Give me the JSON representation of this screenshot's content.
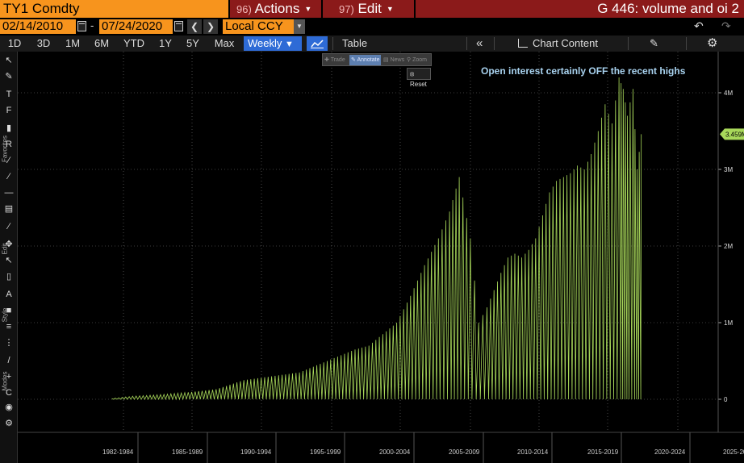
{
  "header": {
    "ticker": "TY1 Comdty",
    "actions_num": "96)",
    "actions_label": "Actions",
    "edit_num": "97)",
    "edit_label": "Edit",
    "title": "G 446: volume and oi 2"
  },
  "date_bar": {
    "start_date": "02/14/2010",
    "end_date": "07/24/2020",
    "separator": "-",
    "currency": "Local CCY"
  },
  "toolbar": {
    "periods": [
      "1D",
      "3D",
      "1M",
      "6M",
      "YTD",
      "1Y",
      "5Y",
      "Max"
    ],
    "frequency": "Weekly",
    "table_label": "Table",
    "chart_content_label": "Chart Content"
  },
  "left_toolbar": {
    "section_labels": [
      "Favorites",
      "Edit",
      "Style",
      "Modes"
    ]
  },
  "mini_toolbar": {
    "items": [
      "Trade",
      "Annotate",
      "News",
      "Zoom"
    ],
    "reset_label": "Reset"
  },
  "annotation_text": "Open interest certainly OFF the recent highs",
  "colors": {
    "orange": "#f7941d",
    "menu_red": "#8b1a1a",
    "series_green": "#a8d85a",
    "annotation_blue": "#a9d3f0"
  },
  "chart_data": {
    "type": "area",
    "x_labels": [
      "1982-1984",
      "1985-1989",
      "1990-1994",
      "1995-1999",
      "2000-2004",
      "2005-2009",
      "2010-2014",
      "2015-2019",
      "2020-2024",
      "2025-2029"
    ],
    "y_ticks": [
      "0",
      "1M",
      "2M",
      "3M",
      "4M"
    ],
    "ylim": [
      0,
      4300000
    ],
    "last_value_label": "3.459M",
    "grid": true,
    "series": [
      {
        "years": [
          1982.5,
          1984,
          1986,
          1988,
          1990,
          1992,
          1994,
          1996,
          1998,
          2000,
          2001,
          2002,
          2003,
          2004,
          2005,
          2006,
          2006.8,
          2007.5,
          2008.3,
          2008.9,
          2009.5,
          2010.5,
          2011,
          2011.5,
          2012,
          2012.5,
          2013,
          2013.5,
          2014,
          2014.5,
          2015,
          2015.5,
          2016,
          2016.5,
          2017,
          2017.5,
          2018,
          2018.5,
          2019,
          2019.3,
          2019.6,
          2020,
          2020.3,
          2020.6
        ],
        "peaks": [
          10000,
          40000,
          60000,
          90000,
          130000,
          250000,
          300000,
          350000,
          500000,
          650000,
          700000,
          850000,
          1000000,
          1350000,
          1750000,
          2100000,
          2450000,
          2900000,
          2100000,
          1000000,
          1200000,
          1650000,
          1850000,
          1900000,
          1850000,
          1950000,
          2100000,
          2400000,
          2700000,
          2850000,
          2900000,
          2950000,
          3050000,
          3000000,
          3200000,
          3500000,
          3850000,
          3600000,
          4200000,
          4050000,
          3700000,
          4050000,
          3000000,
          3459000
        ]
      }
    ]
  }
}
